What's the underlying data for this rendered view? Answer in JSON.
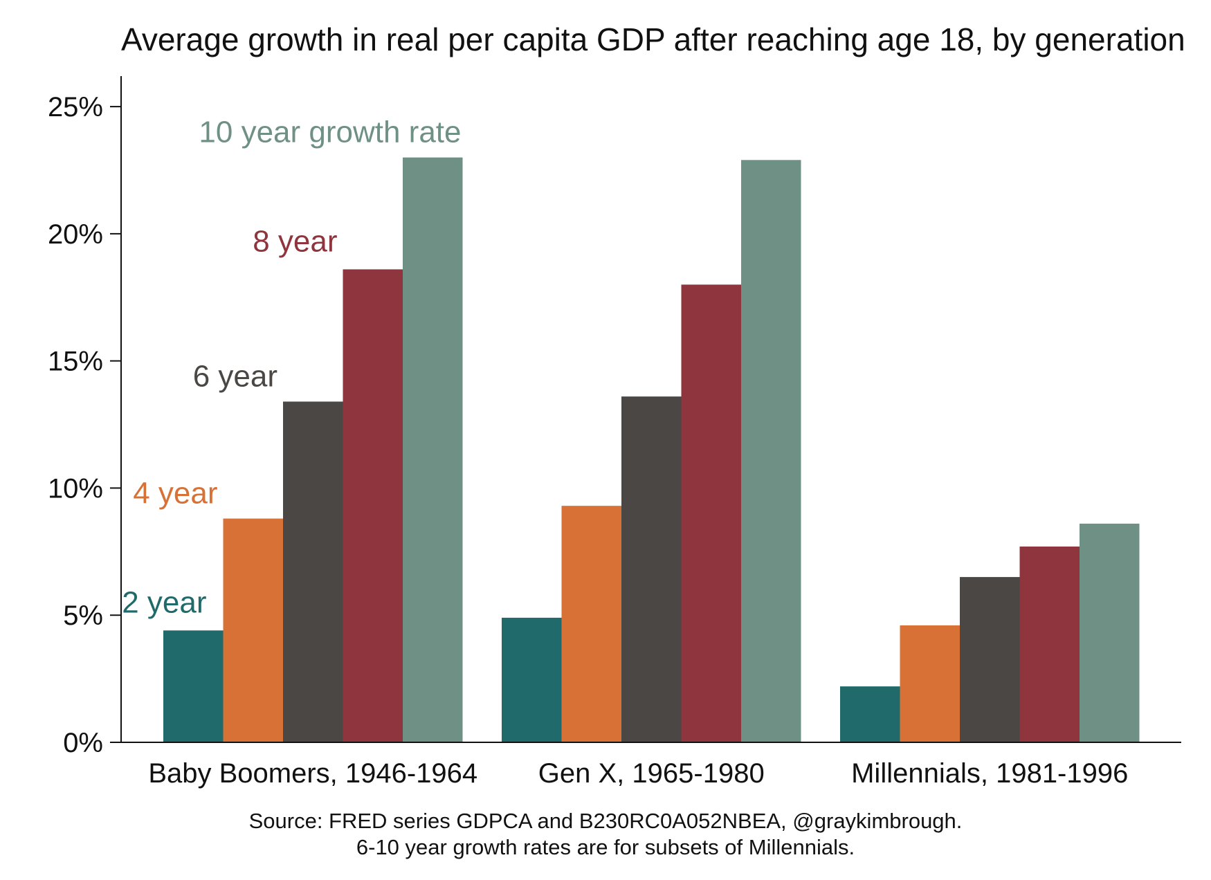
{
  "chart_data": {
    "type": "bar",
    "title": "Average growth in real per capita GDP after reaching age 18, by generation",
    "categories": [
      "Baby Boomers, 1946-1964",
      "Gen X, 1965-1980",
      "Millennials, 1981-1996"
    ],
    "series": [
      {
        "name": "2 year",
        "color": "#216a6b",
        "values": [
          4.4,
          4.9,
          2.2
        ]
      },
      {
        "name": "4 year",
        "color": "#d77135",
        "values": [
          8.8,
          9.3,
          4.6
        ]
      },
      {
        "name": "6 year",
        "color": "#4a4745",
        "values": [
          13.4,
          13.6,
          6.5
        ]
      },
      {
        "name": "8 year",
        "color": "#8e353d",
        "values": [
          18.6,
          18.0,
          7.7
        ]
      },
      {
        "name": "10 year growth rate",
        "color": "#6f9084",
        "values": [
          23.0,
          22.9,
          8.6
        ]
      }
    ],
    "yticks": [
      "0%",
      "5%",
      "10%",
      "15%",
      "20%",
      "25%"
    ],
    "ytick_values": [
      0,
      5,
      10,
      15,
      20,
      25
    ],
    "ylim": [
      0,
      26.2
    ],
    "xlabel": "",
    "ylabel": "",
    "grid": false,
    "legend": "direct labels above Baby Boomers bars",
    "source": "Source: FRED series GDPCA and B230RC0A052NBEA, @graykimbrough.",
    "note": "6-10 year growth rates are for subsets of Millennials."
  }
}
